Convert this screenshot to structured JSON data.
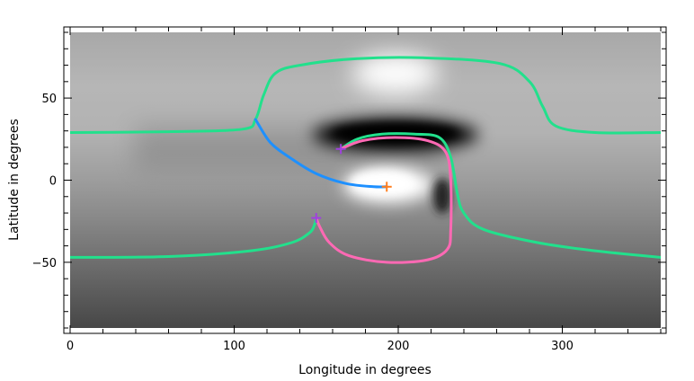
{
  "chart_data": {
    "type": "line",
    "title": "",
    "xlabel": "Longitude in degrees",
    "ylabel": "Latitude in degrees",
    "xlim": [
      0,
      360
    ],
    "ylim": [
      -90,
      90
    ],
    "x_ticks": [
      0,
      100,
      200,
      300
    ],
    "y_ticks": [
      -50,
      0,
      50
    ],
    "grid": false,
    "background": {
      "kind": "grayscale magnetogram",
      "colormap": [
        "#1a1a1a",
        "#ffffff"
      ],
      "features": [
        {
          "shape": "white blob",
          "lon": 215,
          "lat": 70,
          "value": "bright"
        },
        {
          "shape": "black band",
          "lon": 198,
          "lat": 28,
          "value": "dark"
        },
        {
          "shape": "white blob",
          "lon": 200,
          "lat": -4,
          "value": "bright"
        },
        {
          "shape": "dark spot",
          "lon": 228,
          "lat": -12,
          "value": "dark"
        }
      ]
    },
    "series": [
      {
        "color": "#22e08c",
        "x": [
          0,
          60,
          105,
          113,
          118,
          125,
          140,
          175,
          215,
          262,
          280,
          288,
          296,
          320,
          360
        ],
        "y": [
          29,
          29.5,
          31,
          37,
          52,
          65,
          70,
          74,
          74.5,
          71,
          60,
          45,
          33,
          29,
          29
        ]
      },
      {
        "color": "#22e08c",
        "x": [
          0,
          60,
          110,
          135,
          146,
          149,
          150
        ],
        "y": [
          -47,
          -46.5,
          -43,
          -38,
          -32,
          -27,
          -23
        ]
      },
      {
        "color": "#22e08c",
        "x": [
          165,
          175,
          190,
          210,
          225,
          232,
          236,
          240,
          252,
          285,
          320,
          360
        ],
        "y": [
          19,
          25,
          28,
          28,
          26,
          14,
          -8,
          -20,
          -30,
          -38,
          -43,
          -47
        ]
      },
      {
        "color": "#ff69b4",
        "x": [
          165,
          178,
          198,
          218,
          229,
          232,
          232,
          230,
          218,
          193,
          170,
          158,
          152,
          150
        ],
        "y": [
          19,
          24,
          26,
          24,
          17,
          0,
          -30,
          -42,
          -48.5,
          -50,
          -46,
          -38,
          -28,
          -23
        ]
      },
      {
        "color": "#1e90ff",
        "x": [
          113,
          122,
          135,
          150,
          168,
          185,
          193
        ],
        "y": [
          37,
          23,
          13,
          4,
          -2,
          -4,
          -4
        ]
      }
    ],
    "markers": [
      {
        "symbol": "+",
        "color": "#a040e0",
        "x": 165,
        "y": 19
      },
      {
        "symbol": "+",
        "color": "#a040e0",
        "x": 150,
        "y": -23
      },
      {
        "symbol": "+",
        "color": "#ff7f20",
        "x": 193,
        "y": -4
      }
    ]
  }
}
